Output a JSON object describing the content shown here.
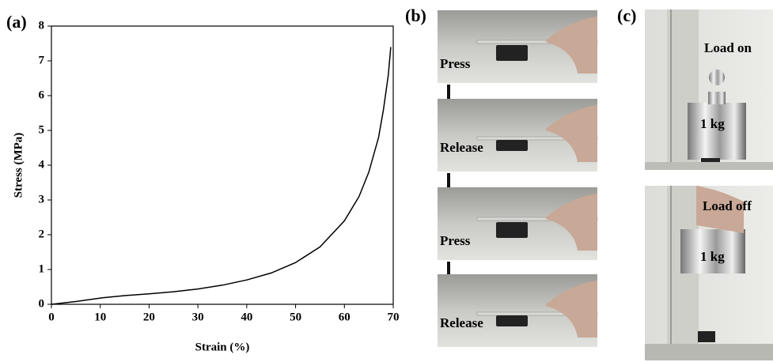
{
  "chart_data": {
    "type": "line",
    "x_label": "Strain (%)",
    "y_label": "Stress (MPa)",
    "color": "#000000",
    "x": [
      0,
      5,
      10,
      15,
      20,
      25,
      30,
      35,
      40,
      45,
      50,
      55,
      60,
      63,
      65,
      67,
      68,
      69,
      69.5
    ],
    "values": [
      0,
      0.08,
      0.18,
      0.25,
      0.3,
      0.36,
      0.44,
      0.55,
      0.7,
      0.9,
      1.2,
      1.65,
      2.4,
      3.1,
      3.8,
      4.8,
      5.6,
      6.6,
      7.4
    ],
    "xlim": [
      0,
      70
    ],
    "xticks": [
      0,
      10,
      20,
      30,
      40,
      50,
      60,
      70
    ],
    "ylim": [
      0,
      8
    ],
    "yticks": [
      0,
      1,
      2,
      3,
      4,
      5,
      6,
      7,
      8
    ]
  },
  "panels": {
    "a": {
      "label": "(a)"
    },
    "b": {
      "label": "(b)",
      "steps": [
        "Press",
        "Release",
        "Press",
        "Release"
      ]
    },
    "c": {
      "label": "(c)",
      "top": {
        "caption": "Load on",
        "weight": "1 kg"
      },
      "bottom": {
        "caption": "Load off",
        "weight": "1 kg"
      }
    }
  }
}
